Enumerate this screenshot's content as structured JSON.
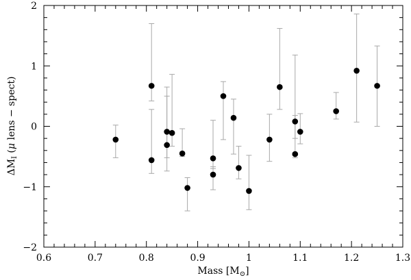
{
  "chart_data": {
    "type": "scatter",
    "title": "",
    "xlabel": "Mass  [M⊙]",
    "ylabel": "ΔM_I (μ lens − spect)",
    "xlim": [
      0.6,
      1.3
    ],
    "ylim": [
      -2,
      2
    ],
    "x_ticks": [
      "0.6",
      "0.7",
      "0.8",
      "0.9",
      "1",
      "1.1",
      "1.2",
      "1.3"
    ],
    "y_ticks": [
      "−2",
      "−1",
      "0",
      "1",
      "2"
    ],
    "grid": false,
    "marker_color": "#000000",
    "errorbar_color": "#a8a8a8",
    "points": [
      {
        "x": 0.74,
        "y": -0.22,
        "lo": -0.52,
        "hi": 0.02
      },
      {
        "x": 0.81,
        "y": 0.67,
        "lo": 0.42,
        "hi": 1.7
      },
      {
        "x": 0.81,
        "y": -0.56,
        "lo": -0.78,
        "hi": 0.28
      },
      {
        "x": 0.84,
        "y": -0.09,
        "lo": -0.74,
        "hi": 0.65
      },
      {
        "x": 0.84,
        "y": -0.31,
        "lo": -0.52,
        "hi": 0.5
      },
      {
        "x": 0.85,
        "y": -0.11,
        "lo": -0.33,
        "hi": 0.86
      },
      {
        "x": 0.87,
        "y": -0.45,
        "lo": -0.5,
        "hi": -0.04
      },
      {
        "x": 0.88,
        "y": -1.02,
        "lo": -1.4,
        "hi": -0.85
      },
      {
        "x": 0.93,
        "y": -0.53,
        "lo": -0.7,
        "hi": 0.1
      },
      {
        "x": 0.93,
        "y": -0.8,
        "lo": -1.05,
        "hi": -0.67
      },
      {
        "x": 0.95,
        "y": 0.5,
        "lo": -0.22,
        "hi": 0.74
      },
      {
        "x": 0.97,
        "y": 0.14,
        "lo": -0.46,
        "hi": 0.45
      },
      {
        "x": 0.98,
        "y": -0.69,
        "lo": -0.87,
        "hi": -0.33
      },
      {
        "x": 1.0,
        "y": -1.07,
        "lo": -1.38,
        "hi": -0.48
      },
      {
        "x": 1.04,
        "y": -0.22,
        "lo": -0.58,
        "hi": 0.2
      },
      {
        "x": 1.06,
        "y": 0.65,
        "lo": 0.28,
        "hi": 1.62
      },
      {
        "x": 1.09,
        "y": 0.08,
        "lo": -0.2,
        "hi": 1.18
      },
      {
        "x": 1.09,
        "y": -0.46,
        "lo": -0.52,
        "hi": 0.18
      },
      {
        "x": 1.1,
        "y": -0.09,
        "lo": -0.29,
        "hi": 0.21
      },
      {
        "x": 1.17,
        "y": 0.25,
        "lo": 0.12,
        "hi": 0.56
      },
      {
        "x": 1.21,
        "y": 0.92,
        "lo": 0.07,
        "hi": 1.86
      },
      {
        "x": 1.25,
        "y": 0.67,
        "lo": 0.0,
        "hi": 1.33
      }
    ]
  }
}
